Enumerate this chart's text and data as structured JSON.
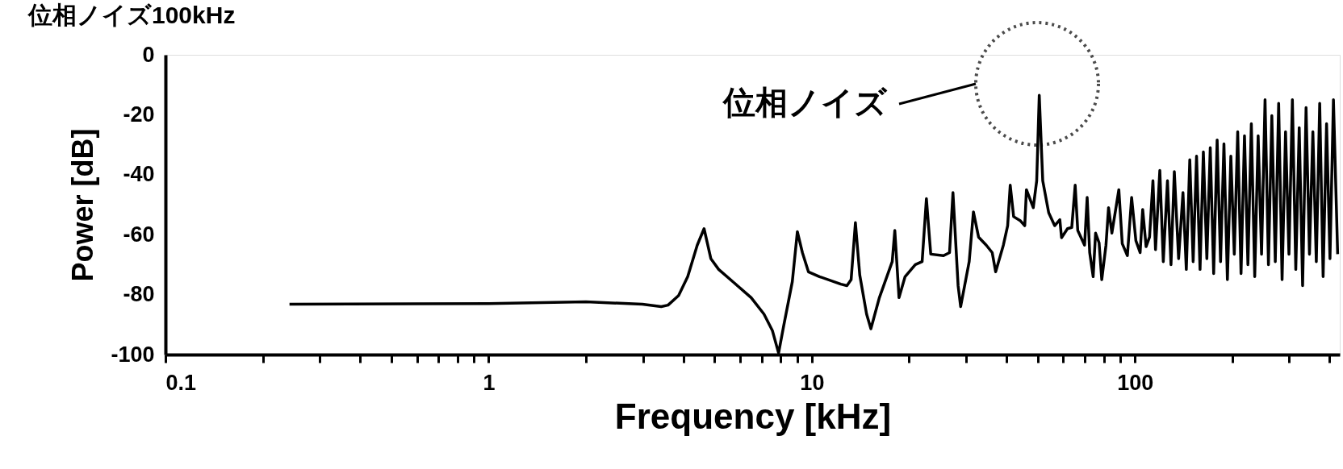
{
  "chart_data": {
    "type": "line",
    "title": "位相ノイズ100kHz",
    "xlabel": "Frequency [kHz]",
    "ylabel": "Power [dB]",
    "log": "x",
    "grid": false,
    "marker": "none",
    "line_style": "solid",
    "xlim": [
      0.1,
      430
    ],
    "ylim": [
      -100,
      0
    ],
    "xticks": [
      0.1,
      {
        "value": 0.2,
        "label": null
      },
      {
        "value": 0.3,
        "label": null
      },
      {
        "value": 0.4,
        "label": null
      },
      {
        "value": 0.5,
        "label": null
      },
      {
        "value": 0.6,
        "label": null
      },
      {
        "value": 0.7,
        "label": null
      },
      {
        "value": 0.8,
        "label": null
      },
      {
        "value": 0.9,
        "label": null
      },
      1,
      {
        "value": 2,
        "label": null
      },
      {
        "value": 3,
        "label": null
      },
      {
        "value": 4,
        "label": null
      },
      {
        "value": 5,
        "label": null
      },
      {
        "value": 6,
        "label": null
      },
      {
        "value": 7,
        "label": null
      },
      {
        "value": 8,
        "label": null
      },
      {
        "value": 9,
        "label": null
      },
      10,
      {
        "value": 20,
        "label": null
      },
      {
        "value": 30,
        "label": null
      },
      {
        "value": 40,
        "label": null
      },
      {
        "value": 50,
        "label": null
      },
      {
        "value": 60,
        "label": null
      },
      {
        "value": 70,
        "label": null
      },
      {
        "value": 80,
        "label": null
      },
      {
        "value": 90,
        "label": null
      },
      100,
      {
        "value": 200,
        "label": null
      },
      {
        "value": 300,
        "label": null
      },
      {
        "value": 400,
        "label": null
      }
    ],
    "yticks": [
      0,
      -20,
      -40,
      -60,
      -80,
      -100
    ],
    "annotations": [
      "位相ノイズ"
    ],
    "series": [
      {
        "color": "#000000",
        "x": [
          0.242,
          1,
          2.0,
          2.99,
          3.42,
          3.59,
          3.87,
          4.13,
          4.42,
          4.64,
          4.87,
          5.15,
          5.74,
          6.49,
          7.11,
          7.55,
          7.89,
          8.18,
          8.7,
          9.02,
          9.35,
          9.76,
          10.56,
          12.3,
          12.84,
          13.23,
          13.64,
          14.07,
          14.77,
          15.23,
          16.18,
          17.73,
          18.06,
          18.61,
          19.43,
          20.9,
          21.94,
          22.62,
          23.33,
          25.55,
          26.67,
          27.33,
          28.35,
          28.87,
          30.68,
          31.62,
          32.8,
          34.65,
          36.15,
          37.05,
          39.14,
          40.35,
          41.1,
          42.11,
          44.21,
          45.58,
          46.13,
          48.43,
          49.63,
          50.54,
          51.81,
          54.06,
          56.41,
          58.52,
          59.24,
          61.8,
          63.71,
          65.28,
          66.49,
          69.8,
          71.1,
          72.4,
          74.2,
          75.5,
          77.4,
          78.9,
          81.3,
          82.8,
          84.8,
          89.1,
          91.3,
          94.7,
          97.6,
          100.6,
          103.7,
          105.6,
          108.2,
          110.9,
          113.6,
          115.7,
          119.3,
          122.3,
          126.0,
          129.2,
          132.3,
          136.4,
          140.7,
          144.1,
          147.7,
          151.3,
          155.0,
          158.9,
          162.7,
          166.8,
          170.9,
          175.1,
          179.5,
          183.9,
          188.4,
          193.1,
          197.9,
          202.8,
          207.8,
          212.8,
          218.1,
          223.5,
          229.0,
          234.6,
          240.4,
          246.3,
          252.5,
          258.7,
          265.0,
          271.6,
          278.2,
          285.1,
          292.2,
          299.4,
          306.8,
          314.3,
          322.1,
          330.0,
          338.2,
          346.5,
          355.0,
          363.8,
          372.7,
          381.9,
          391.4,
          401.0,
          411.0,
          423.6
        ],
        "values": [
          -83.2,
          -83,
          -82.4,
          -83.2,
          -84,
          -83.5,
          -80.3,
          -74,
          -63.5,
          -58,
          -68,
          -71.6,
          -76,
          -81,
          -86.5,
          -92,
          -99.5,
          -90.5,
          -75.7,
          -59,
          -66,
          -72.4,
          -74,
          -76.5,
          -77,
          -75,
          -56,
          -73.5,
          -86.5,
          -91.4,
          -81,
          -69,
          -58.6,
          -81,
          -74,
          -70,
          -69,
          -48,
          -66.5,
          -67,
          -66,
          -46,
          -77,
          -84,
          -69,
          -52.4,
          -60.8,
          -63.5,
          -66,
          -72.4,
          -63.5,
          -57,
          -43.5,
          -54,
          -55.4,
          -57,
          -45,
          -51,
          -42,
          -13.5,
          -42,
          -52.7,
          -57,
          -55,
          -61,
          -58,
          -57.6,
          -43.5,
          -58.6,
          -63.5,
          -47.6,
          -66,
          -74,
          -59.5,
          -62.7,
          -75,
          -63.5,
          -51,
          -59.5,
          -45,
          -63,
          -67,
          -47.6,
          -62,
          -66,
          -51.6,
          -64,
          -60.8,
          -42,
          -65,
          -38.6,
          -69,
          -42,
          -70,
          -39,
          -68,
          -46,
          -71.6,
          -35,
          -69,
          -33.8,
          -71.6,
          -32.4,
          -68,
          -31,
          -73,
          -28.4,
          -69,
          -29.7,
          -75,
          -33.8,
          -66.5,
          -25.7,
          -73,
          -27,
          -70,
          -23,
          -74,
          -27,
          -66.5,
          -15,
          -70,
          -20.3,
          -69,
          -16.2,
          -75,
          -25.7,
          -66.5,
          -15,
          -71.6,
          -24.3,
          -77,
          -17.6,
          -66.5,
          -25.7,
          -69,
          -16.2,
          -74,
          -23,
          -68,
          -15,
          -66.5
        ]
      }
    ]
  }
}
